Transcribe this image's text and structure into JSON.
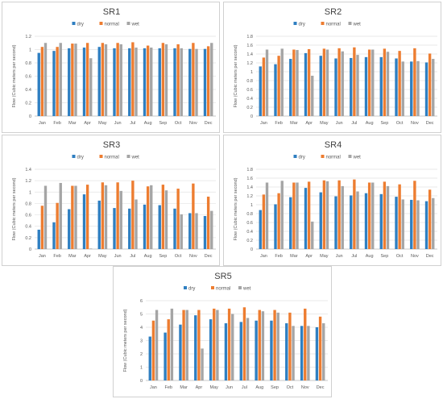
{
  "chart_data": [
    {
      "type": "bar",
      "title": "SR1",
      "ylabel": "Flow (Cubic meters per second)",
      "xlabel": "",
      "categories": [
        "Jan",
        "Feb",
        "Mar",
        "Apr",
        "May",
        "Jun",
        "Jul",
        "Aug",
        "Sep",
        "Oct",
        "Nov",
        "Dec"
      ],
      "ylim": [
        0,
        1.2
      ],
      "yticks": [
        "0",
        "0.2",
        "0.4",
        "0.6",
        "0.8",
        "1",
        "1.2"
      ],
      "yticks_values": [
        0,
        0.2,
        0.4,
        0.6,
        0.8,
        1,
        1.2
      ],
      "legend_position": "top-center",
      "grid": true,
      "series": [
        {
          "name": "dry",
          "color": "#2f7fc1",
          "values": [
            0.95,
            0.98,
            1.02,
            1.03,
            1.04,
            1.02,
            1.02,
            1.02,
            1.02,
            1.02,
            1.01,
            1.01
          ]
        },
        {
          "name": "normal",
          "color": "#ed7d31",
          "values": [
            1.04,
            1.04,
            1.09,
            1.1,
            1.1,
            1.1,
            1.11,
            1.06,
            1.1,
            1.08,
            1.1,
            1.05
          ]
        },
        {
          "name": "wet",
          "color": "#a5a5a5",
          "values": [
            1.1,
            1.1,
            1.09,
            0.87,
            1.08,
            1.08,
            1.03,
            1.03,
            1.08,
            1.02,
            1.01,
            1.1
          ]
        }
      ]
    },
    {
      "type": "bar",
      "title": "SR2",
      "ylabel": "Flow (Cubic meters per second)",
      "xlabel": "",
      "categories": [
        "Jan",
        "Feb",
        "Mar",
        "Apr",
        "May",
        "Jun",
        "Jul",
        "Aug",
        "Sep",
        "Oct",
        "Nov",
        "Dec"
      ],
      "ylim": [
        0,
        1.8
      ],
      "yticks": [
        "0",
        "0.2",
        "0.4",
        "0.6",
        "0.8",
        "1",
        "1.2",
        "1.4",
        "1.6",
        "1.8"
      ],
      "yticks_values": [
        0,
        0.2,
        0.4,
        0.6,
        0.8,
        1,
        1.2,
        1.4,
        1.6,
        1.8
      ],
      "legend_position": "top-center",
      "grid": true,
      "series": [
        {
          "name": "dry",
          "color": "#2f7fc1",
          "values": [
            1.12,
            1.17,
            1.29,
            1.42,
            1.36,
            1.3,
            1.31,
            1.33,
            1.33,
            1.3,
            1.23,
            1.21
          ]
        },
        {
          "name": "normal",
          "color": "#ed7d31",
          "values": [
            1.32,
            1.36,
            1.5,
            1.51,
            1.52,
            1.53,
            1.55,
            1.5,
            1.52,
            1.47,
            1.53,
            1.41
          ]
        },
        {
          "name": "wet",
          "color": "#a5a5a5",
          "values": [
            1.5,
            1.52,
            1.49,
            0.91,
            1.5,
            1.46,
            1.38,
            1.5,
            1.45,
            1.23,
            1.24,
            1.29
          ]
        }
      ]
    },
    {
      "type": "bar",
      "title": "SR3",
      "ylabel": "Flow (Cubic meters per second)",
      "xlabel": "",
      "categories": [
        "Jan",
        "Feb",
        "Mar",
        "Apr",
        "May",
        "Jun",
        "Jul",
        "Aug",
        "Sep",
        "Oct",
        "Nov",
        "Dec"
      ],
      "ylim": [
        0,
        1.4
      ],
      "yticks": [
        "0",
        "0.2",
        "0.4",
        "0.6",
        "0.8",
        "1",
        "1.2",
        "1.4"
      ],
      "yticks_values": [
        0,
        0.2,
        0.4,
        0.6,
        0.8,
        1,
        1.2,
        1.4
      ],
      "legend_position": "top-center",
      "grid": true,
      "series": [
        {
          "name": "dry",
          "color": "#2f7fc1",
          "values": [
            0.34,
            0.47,
            0.7,
            0.96,
            0.85,
            0.72,
            0.71,
            0.78,
            0.77,
            0.71,
            0.63,
            0.58
          ]
        },
        {
          "name": "normal",
          "color": "#ed7d31",
          "values": [
            0.76,
            0.81,
            1.11,
            1.13,
            1.17,
            1.17,
            1.2,
            1.1,
            1.13,
            1.06,
            1.15,
            0.92
          ]
        },
        {
          "name": "wet",
          "color": "#a5a5a5",
          "values": [
            1.11,
            1.16,
            1.11,
            0.01,
            1.12,
            1.02,
            0.87,
            1.12,
            1.03,
            0.61,
            0.63,
            0.67
          ]
        }
      ]
    },
    {
      "type": "bar",
      "title": "SR4",
      "ylabel": "Flow (Cubic meters per second)",
      "xlabel": "",
      "categories": [
        "Jan",
        "Feb",
        "Mar",
        "Apr",
        "May",
        "Jun",
        "Jul",
        "Aug",
        "Sep",
        "Oct",
        "Nov",
        "Dec"
      ],
      "ylim": [
        0,
        1.8
      ],
      "yticks": [
        "0",
        "0.2",
        "0.4",
        "0.6",
        "0.8",
        "1",
        "1.2",
        "1.4",
        "1.6",
        "1.8"
      ],
      "yticks_values": [
        0,
        0.2,
        0.4,
        0.6,
        0.8,
        1,
        1.2,
        1.4,
        1.6,
        1.8
      ],
      "legend_position": "top-center",
      "grid": true,
      "series": [
        {
          "name": "dry",
          "color": "#2f7fc1",
          "values": [
            0.88,
            1.01,
            1.17,
            1.38,
            1.28,
            1.19,
            1.21,
            1.26,
            1.24,
            1.18,
            1.11,
            1.08
          ]
        },
        {
          "name": "normal",
          "color": "#ed7d31",
          "values": [
            1.23,
            1.26,
            1.5,
            1.52,
            1.55,
            1.55,
            1.57,
            1.5,
            1.52,
            1.46,
            1.54,
            1.34
          ]
        },
        {
          "name": "wet",
          "color": "#a5a5a5",
          "values": [
            1.5,
            1.54,
            1.5,
            0.62,
            1.53,
            1.42,
            1.3,
            1.5,
            1.42,
            1.12,
            1.1,
            1.15
          ]
        }
      ]
    },
    {
      "type": "bar",
      "title": "SR5",
      "ylabel": "Flow (Cubic meters per second)",
      "xlabel": "",
      "categories": [
        "Jan",
        "Feb",
        "Mar",
        "Apr",
        "May",
        "Jun",
        "Jul",
        "Aug",
        "Sep",
        "Oct",
        "Nov",
        "Dec"
      ],
      "ylim": [
        0,
        6
      ],
      "yticks": [
        "0",
        "1",
        "2",
        "3",
        "4",
        "5",
        "6"
      ],
      "yticks_values": [
        0,
        1,
        2,
        3,
        4,
        5,
        6
      ],
      "legend_position": "top-center",
      "grid": true,
      "series": [
        {
          "name": "dry",
          "color": "#2f7fc1",
          "values": [
            3.3,
            3.6,
            4.2,
            4.9,
            4.6,
            4.3,
            4.4,
            4.5,
            4.5,
            4.3,
            4.1,
            4.0
          ]
        },
        {
          "name": "normal",
          "color": "#ed7d31",
          "values": [
            4.5,
            4.6,
            5.3,
            5.3,
            5.4,
            5.4,
            5.5,
            5.3,
            5.3,
            5.1,
            5.4,
            4.8
          ]
        },
        {
          "name": "wet",
          "color": "#a5a5a5",
          "values": [
            5.3,
            5.4,
            5.3,
            2.4,
            5.3,
            5.0,
            4.7,
            5.2,
            5.1,
            4.1,
            4.1,
            4.3
          ]
        }
      ]
    }
  ]
}
